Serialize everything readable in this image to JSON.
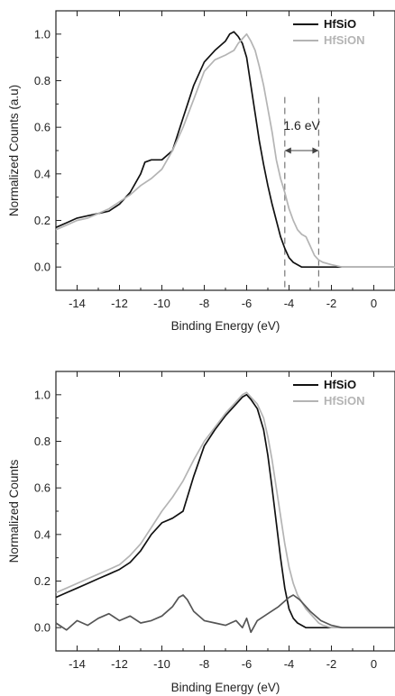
{
  "chart_data": [
    {
      "type": "line",
      "xlabel": "Binding Energy (eV)",
      "ylabel": "Normalized Counts (a.u)",
      "xlim": [
        -15,
        1
      ],
      "ylim": [
        -0.1,
        1.1
      ],
      "xticks": [
        "-14",
        "-12",
        "-10",
        "-8",
        "-6",
        "-4",
        "-2",
        "0"
      ],
      "yticks": [
        "0.0",
        "0.2",
        "0.4",
        "0.6",
        "0.8",
        "1.0"
      ],
      "legend_position": "top-right",
      "series": [
        {
          "name": "HfSiO",
          "color": "#111111",
          "x": [
            -15,
            -14.5,
            -14,
            -13.5,
            -13,
            -12.5,
            -12,
            -11.5,
            -11,
            -10.8,
            -10.5,
            -10,
            -9.5,
            -9,
            -8.5,
            -8,
            -7.5,
            -7,
            -6.8,
            -6.6,
            -6.4,
            -6.2,
            -6,
            -5.8,
            -5.6,
            -5.4,
            -5.2,
            -5,
            -4.8,
            -4.6,
            -4.4,
            -4.2,
            -4,
            -3.8,
            -3.6,
            -3.4,
            -3.2,
            -3,
            -2.5,
            -2,
            -1.5,
            -1,
            -0.5,
            0,
            0.5,
            1
          ],
          "y": [
            0.17,
            0.19,
            0.21,
            0.22,
            0.23,
            0.24,
            0.27,
            0.32,
            0.4,
            0.45,
            0.46,
            0.46,
            0.5,
            0.64,
            0.78,
            0.88,
            0.93,
            0.97,
            1.0,
            1.01,
            0.99,
            0.96,
            0.9,
            0.78,
            0.66,
            0.54,
            0.44,
            0.35,
            0.27,
            0.2,
            0.13,
            0.08,
            0.04,
            0.02,
            0.01,
            0.0,
            0.0,
            0.0,
            0.0,
            0.0,
            0.0,
            0.0,
            0.0,
            0.0,
            0.0,
            0.0
          ]
        },
        {
          "name": "HfSiON",
          "color": "#b4b4b4",
          "x": [
            -15,
            -14.5,
            -14,
            -13.5,
            -13,
            -12.5,
            -12,
            -11.5,
            -11,
            -10.5,
            -10,
            -9.5,
            -9,
            -8.5,
            -8,
            -7.5,
            -7,
            -6.6,
            -6.4,
            -6.2,
            -6,
            -5.8,
            -5.6,
            -5.4,
            -5.2,
            -5,
            -4.8,
            -4.6,
            -4.4,
            -4.2,
            -4,
            -3.8,
            -3.6,
            -3.4,
            -3.2,
            -3,
            -2.8,
            -2.6,
            -2.4,
            -2,
            -1.5,
            -1,
            -0.5,
            0,
            0.5,
            1
          ],
          "y": [
            0.16,
            0.18,
            0.2,
            0.21,
            0.23,
            0.25,
            0.28,
            0.31,
            0.35,
            0.38,
            0.42,
            0.5,
            0.6,
            0.72,
            0.84,
            0.89,
            0.91,
            0.93,
            0.96,
            0.98,
            1.0,
            0.97,
            0.93,
            0.86,
            0.78,
            0.68,
            0.58,
            0.46,
            0.38,
            0.32,
            0.25,
            0.2,
            0.16,
            0.14,
            0.13,
            0.09,
            0.05,
            0.03,
            0.02,
            0.01,
            0.0,
            0.0,
            0.0,
            0.0,
            0.0,
            0.0
          ]
        }
      ],
      "annotation": {
        "text": "1.6 eV",
        "x1": -4.2,
        "x2": -2.6,
        "y": 0.5
      }
    },
    {
      "type": "line",
      "xlabel": "Binding Energy (eV)",
      "ylabel": "Normalized Counts",
      "xlim": [
        -15,
        1
      ],
      "ylim": [
        -0.1,
        1.1
      ],
      "xticks": [
        "-14",
        "-12",
        "-10",
        "-8",
        "-6",
        "-4",
        "-2",
        "0"
      ],
      "yticks": [
        "0.0",
        "0.2",
        "0.4",
        "0.6",
        "0.8",
        "1.0"
      ],
      "legend_position": "top-right",
      "series": [
        {
          "name": "HfSiO",
          "color": "#111111",
          "x": [
            -15,
            -14.5,
            -14,
            -13.5,
            -13,
            -12.5,
            -12,
            -11.5,
            -11,
            -10.5,
            -10,
            -9.5,
            -9,
            -8.5,
            -8,
            -7.5,
            -7,
            -6.5,
            -6.2,
            -6,
            -5.8,
            -5.5,
            -5.2,
            -5,
            -4.8,
            -4.6,
            -4.4,
            -4.2,
            -4,
            -3.8,
            -3.6,
            -3.4,
            -3.2,
            -3,
            -2.5,
            -2,
            -1.5,
            -1,
            -0.5,
            0,
            0.5,
            1
          ],
          "y": [
            0.13,
            0.15,
            0.17,
            0.19,
            0.21,
            0.23,
            0.25,
            0.28,
            0.33,
            0.4,
            0.45,
            0.47,
            0.5,
            0.65,
            0.78,
            0.85,
            0.91,
            0.96,
            0.99,
            1.0,
            0.98,
            0.94,
            0.85,
            0.74,
            0.6,
            0.45,
            0.3,
            0.17,
            0.08,
            0.04,
            0.02,
            0.01,
            0.0,
            0.0,
            0.0,
            0.0,
            0.0,
            0.0,
            0.0,
            0.0,
            0.0,
            0.0
          ]
        },
        {
          "name": "HfSiON",
          "color": "#b4b4b4",
          "x": [
            -15,
            -14.5,
            -14,
            -13.5,
            -13,
            -12.5,
            -12,
            -11.5,
            -11,
            -10.5,
            -10,
            -9.5,
            -9,
            -8.5,
            -8,
            -7.5,
            -7,
            -6.5,
            -6.2,
            -6,
            -5.8,
            -5.5,
            -5.2,
            -5,
            -4.8,
            -4.6,
            -4.4,
            -4.2,
            -4,
            -3.8,
            -3.6,
            -3.4,
            -3.2,
            -3,
            -2.8,
            -2.6,
            -2.4,
            -2,
            -1.5,
            -1,
            -0.5,
            0,
            0.5,
            1
          ],
          "y": [
            0.15,
            0.17,
            0.19,
            0.21,
            0.23,
            0.25,
            0.27,
            0.31,
            0.36,
            0.43,
            0.5,
            0.56,
            0.63,
            0.72,
            0.8,
            0.86,
            0.92,
            0.97,
            1.0,
            1.01,
            0.99,
            0.96,
            0.9,
            0.82,
            0.72,
            0.6,
            0.48,
            0.36,
            0.26,
            0.19,
            0.14,
            0.11,
            0.08,
            0.06,
            0.04,
            0.02,
            0.01,
            0.0,
            0.0,
            0.0,
            0.0,
            0.0,
            0.0,
            0.0
          ]
        },
        {
          "name": "",
          "color": "#555555",
          "x": [
            -15,
            -14.5,
            -14,
            -13.5,
            -13,
            -12.5,
            -12,
            -11.5,
            -11,
            -10.5,
            -10,
            -9.5,
            -9.2,
            -9,
            -8.8,
            -8.5,
            -8,
            -7.5,
            -7,
            -6.5,
            -6.2,
            -6,
            -5.8,
            -5.5,
            -5,
            -4.5,
            -4,
            -3.8,
            -3.5,
            -3,
            -2.5,
            -2,
            -1.5,
            -1,
            -0.5,
            0,
            0.5,
            1
          ],
          "y": [
            0.02,
            -0.01,
            0.03,
            0.01,
            0.04,
            0.06,
            0.03,
            0.05,
            0.02,
            0.03,
            0.05,
            0.09,
            0.13,
            0.14,
            0.12,
            0.07,
            0.03,
            0.02,
            0.01,
            0.03,
            0.0,
            0.04,
            -0.02,
            0.03,
            0.06,
            0.09,
            0.13,
            0.14,
            0.12,
            0.07,
            0.03,
            0.01,
            0.0,
            0.0,
            0.0,
            0.0,
            0.0,
            0.0
          ]
        }
      ]
    }
  ]
}
